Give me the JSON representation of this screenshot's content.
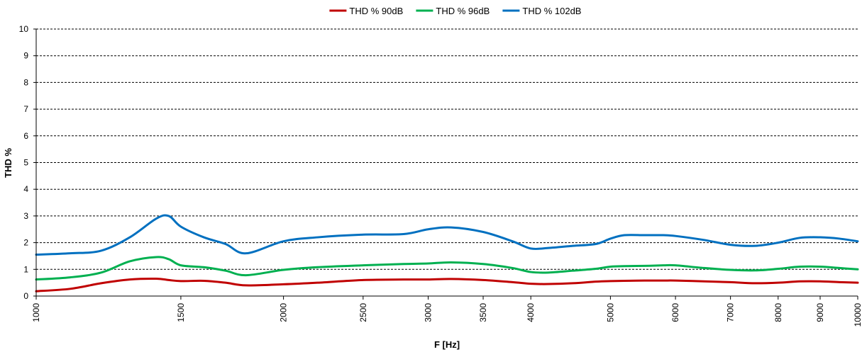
{
  "chart_data": {
    "type": "line",
    "title": "",
    "xlabel": "F [Hz]",
    "ylabel": "THD %",
    "x_scale": "log",
    "xlim": [
      1000,
      10000
    ],
    "ylim": [
      0,
      10
    ],
    "x_ticks": [
      "1000",
      "1500",
      "2000",
      "2500",
      "3000",
      "3500",
      "4000",
      "5000",
      "6000",
      "7000",
      "8000",
      "9000",
      "10000"
    ],
    "y_ticks": [
      "0",
      "1",
      "2",
      "3",
      "4",
      "5",
      "6",
      "7",
      "8",
      "9",
      "10"
    ],
    "grid": true,
    "legend_position": "top",
    "x": [
      1000,
      1100,
      1200,
      1300,
      1400,
      1450,
      1500,
      1600,
      1700,
      1800,
      2000,
      2200,
      2500,
      2800,
      3000,
      3200,
      3500,
      3800,
      4000,
      4200,
      4500,
      4800,
      5000,
      5200,
      5500,
      5800,
      6000,
      6500,
      7000,
      7500,
      8000,
      8500,
      9000,
      9500,
      10000
    ],
    "series": [
      {
        "name": "THD % 90dB",
        "color": "#c00000",
        "values": [
          0.18,
          0.27,
          0.48,
          0.62,
          0.65,
          0.6,
          0.56,
          0.57,
          0.5,
          0.4,
          0.44,
          0.5,
          0.6,
          0.62,
          0.62,
          0.64,
          0.6,
          0.52,
          0.46,
          0.45,
          0.48,
          0.54,
          0.56,
          0.57,
          0.58,
          0.58,
          0.58,
          0.55,
          0.52,
          0.48,
          0.5,
          0.55,
          0.55,
          0.52,
          0.5
        ]
      },
      {
        "name": "THD % 96dB",
        "color": "#00b050",
        "values": [
          0.62,
          0.7,
          0.88,
          1.3,
          1.46,
          1.38,
          1.15,
          1.08,
          0.95,
          0.78,
          0.98,
          1.08,
          1.15,
          1.2,
          1.22,
          1.26,
          1.2,
          1.05,
          0.9,
          0.88,
          0.95,
          1.02,
          1.1,
          1.12,
          1.13,
          1.15,
          1.15,
          1.05,
          0.98,
          0.96,
          1.02,
          1.1,
          1.1,
          1.05,
          1.0
        ]
      },
      {
        "name": "THD % 102dB",
        "color": "#0070c0",
        "values": [
          1.55,
          1.6,
          1.7,
          2.2,
          2.9,
          3.0,
          2.6,
          2.2,
          1.95,
          1.6,
          2.05,
          2.2,
          2.3,
          2.32,
          2.5,
          2.57,
          2.4,
          2.05,
          1.78,
          1.8,
          1.88,
          1.95,
          2.15,
          2.28,
          2.28,
          2.28,
          2.25,
          2.1,
          1.92,
          1.88,
          2.0,
          2.18,
          2.2,
          2.15,
          2.05
        ]
      }
    ]
  }
}
